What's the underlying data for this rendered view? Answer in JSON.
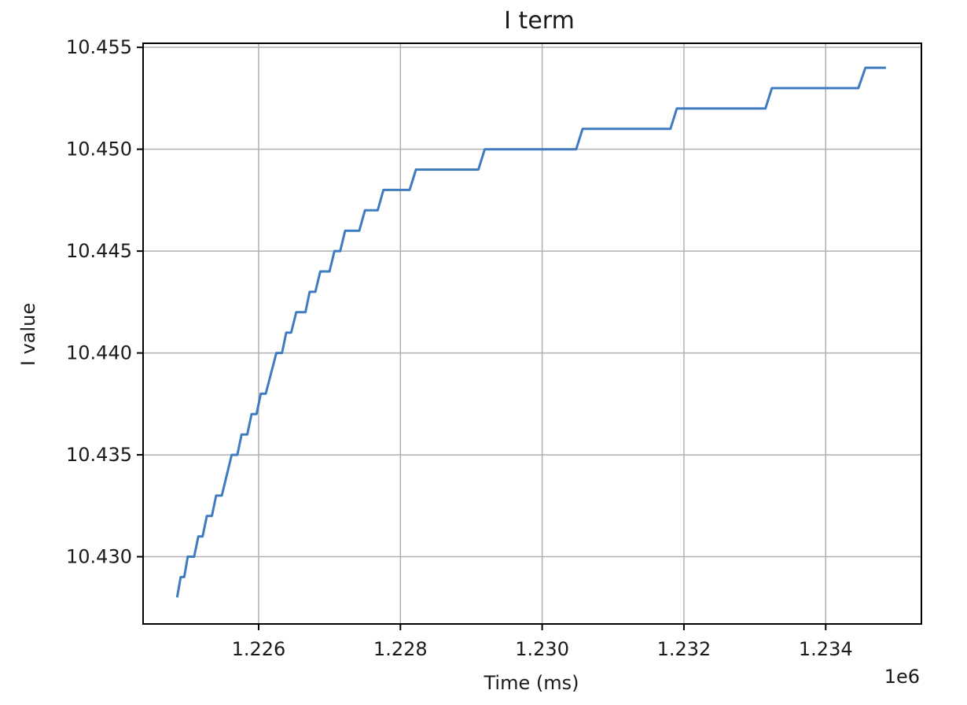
{
  "chart_data": {
    "type": "line",
    "title": "I term",
    "xlabel": "Time (ms)",
    "ylabel": "I value",
    "x_offset_label": "1e6",
    "xlim": [
      1.22437,
      1.23535
    ],
    "ylim": [
      10.4267,
      10.4552
    ],
    "x_ticks": [
      1.226,
      1.228,
      1.23,
      1.232,
      1.234
    ],
    "x_tick_labels": [
      "1.226",
      "1.228",
      "1.230",
      "1.232",
      "1.234"
    ],
    "y_ticks": [
      10.43,
      10.435,
      10.44,
      10.445,
      10.45,
      10.455
    ],
    "y_tick_labels": [
      "10.430",
      "10.435",
      "10.440",
      "10.445",
      "10.450",
      "10.455"
    ],
    "grid": true,
    "colors": {
      "line": "#3f7cbf",
      "grid": "#b0b0b0",
      "axes": "#000000"
    },
    "series": [
      {
        "values": [
          [
            1.22485,
            10.428
          ],
          [
            1.2249,
            10.429
          ],
          [
            1.22495,
            10.429
          ],
          [
            1.225,
            10.43
          ],
          [
            1.22509,
            10.43
          ],
          [
            1.22515,
            10.431
          ],
          [
            1.22521,
            10.431
          ],
          [
            1.22527,
            10.432
          ],
          [
            1.22534,
            10.432
          ],
          [
            1.2254,
            10.433
          ],
          [
            1.22548,
            10.433
          ],
          [
            1.22562,
            10.435
          ],
          [
            1.2257,
            10.435
          ],
          [
            1.22576,
            10.436
          ],
          [
            1.22584,
            10.436
          ],
          [
            1.2259,
            10.437
          ],
          [
            1.22597,
            10.437
          ],
          [
            1.22603,
            10.438
          ],
          [
            1.2261,
            10.438
          ],
          [
            1.22625,
            10.44
          ],
          [
            1.22633,
            10.44
          ],
          [
            1.22639,
            10.441
          ],
          [
            1.22646,
            10.441
          ],
          [
            1.22653,
            10.442
          ],
          [
            1.22666,
            10.442
          ],
          [
            1.22672,
            10.443
          ],
          [
            1.2268,
            10.443
          ],
          [
            1.22687,
            10.444
          ],
          [
            1.227,
            10.444
          ],
          [
            1.22707,
            10.445
          ],
          [
            1.22715,
            10.445
          ],
          [
            1.22722,
            10.446
          ],
          [
            1.22742,
            10.446
          ],
          [
            1.2275,
            10.447
          ],
          [
            1.22768,
            10.447
          ],
          [
            1.22776,
            10.448
          ],
          [
            1.22813,
            10.448
          ],
          [
            1.22822,
            10.449
          ],
          [
            1.2291,
            10.449
          ],
          [
            1.22919,
            10.45
          ],
          [
            1.23048,
            10.45
          ],
          [
            1.23057,
            10.451
          ],
          [
            1.23181,
            10.451
          ],
          [
            1.2319,
            10.452
          ],
          [
            1.23315,
            10.452
          ],
          [
            1.23324,
            10.453
          ],
          [
            1.23446,
            10.453
          ],
          [
            1.23456,
            10.454
          ],
          [
            1.23485,
            10.454
          ]
        ]
      }
    ]
  }
}
